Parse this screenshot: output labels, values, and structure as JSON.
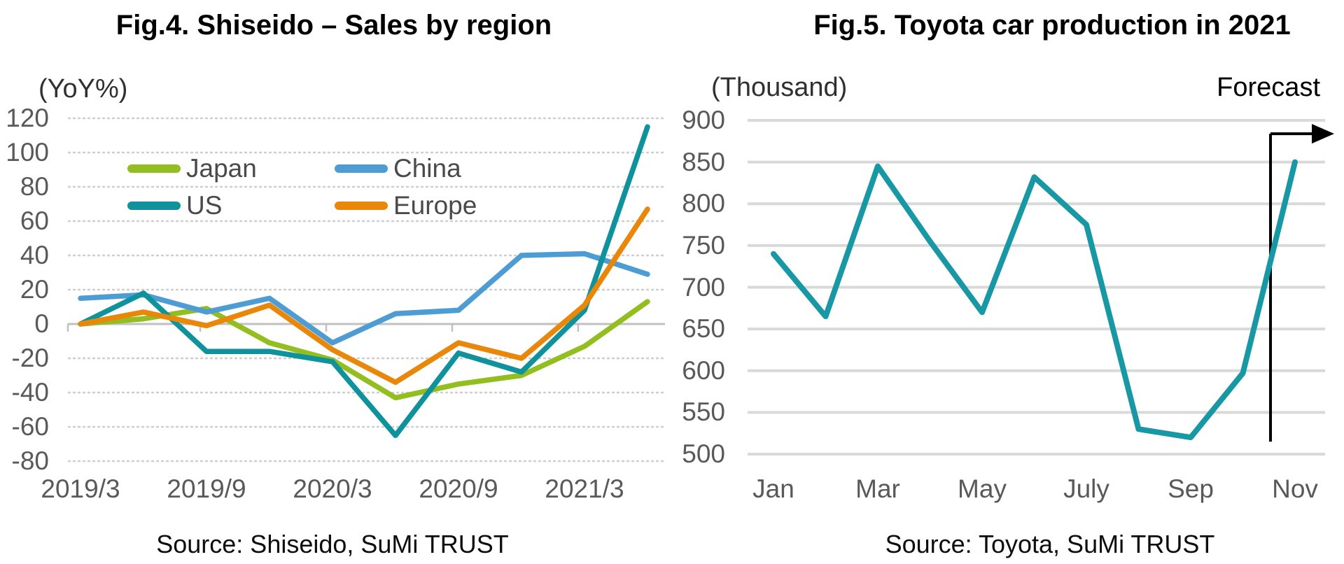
{
  "chart_data": [
    {
      "type": "line",
      "title": "Fig.4. Shiseido – Sales by region",
      "ylabel": "(YoY%)",
      "source": "Source: Shiseido, SuMi TRUST",
      "categories": [
        "2019/3",
        "2019/6",
        "2019/9",
        "2019/12",
        "2020/3",
        "2020/6",
        "2020/9",
        "2020/12",
        "2021/3",
        "2021/6"
      ],
      "x_tick_labels": [
        "2019/3",
        "2019/9",
        "2020/3",
        "2020/9",
        "2021/3"
      ],
      "y_tick_labels": [
        "120",
        "100",
        "80",
        "60",
        "40",
        "20",
        "0",
        "-20",
        "-40",
        "-60",
        "-80"
      ],
      "ylim": [
        -80,
        120
      ],
      "ytick_step": 20,
      "grid": "dashed",
      "legend_position": "inside-top-left",
      "series": [
        {
          "name": "Japan",
          "color": "#93BE20",
          "values": [
            0,
            3,
            9,
            -11,
            -21,
            -43,
            -35,
            -30,
            -13,
            13
          ]
        },
        {
          "name": "China",
          "color": "#4D9CD3",
          "values": [
            15,
            17,
            7,
            15,
            -11,
            6,
            8,
            40,
            41,
            29
          ]
        },
        {
          "name": "US",
          "color": "#0F929B",
          "values": [
            0,
            18,
            -16,
            -16,
            -22,
            -65,
            -17,
            -28,
            8,
            115
          ]
        },
        {
          "name": "Europe",
          "color": "#E8870A",
          "values": [
            0,
            7,
            -1,
            11,
            -15,
            -34,
            -11,
            -20,
            11,
            67
          ]
        }
      ]
    },
    {
      "type": "line",
      "title": "Fig.5. Toyota car production in 2021",
      "ylabel": "(Thousand)",
      "source": "Source: Toyota, SuMi TRUST",
      "categories": [
        "Jan",
        "Feb",
        "Mar",
        "Apr",
        "May",
        "Jun",
        "July",
        "Aug",
        "Sep",
        "Oct",
        "Nov"
      ],
      "x_tick_labels": [
        "Jan",
        "Mar",
        "May",
        "July",
        "Sep",
        "Nov"
      ],
      "y_tick_labels": [
        "900",
        "850",
        "800",
        "750",
        "700",
        "650",
        "600",
        "550",
        "500"
      ],
      "ylim": [
        500,
        900
      ],
      "ytick_step": 50,
      "grid": "solid",
      "series": [
        {
          "name": "Toyota car production",
          "color": "#1897A5",
          "values": [
            740,
            665,
            845,
            755,
            670,
            832,
            775,
            530,
            520,
            597,
            850
          ]
        }
      ],
      "annotation": {
        "label": "Forecast",
        "divider_after_category": "Oct",
        "arrow": "right"
      }
    }
  ],
  "colors": {
    "grid_dashed": "#CFCFCF",
    "grid_solid": "#D9D9D9",
    "zero_axis": "#C0C0C0",
    "axis_text": "#595959",
    "forecast": "#000000"
  }
}
